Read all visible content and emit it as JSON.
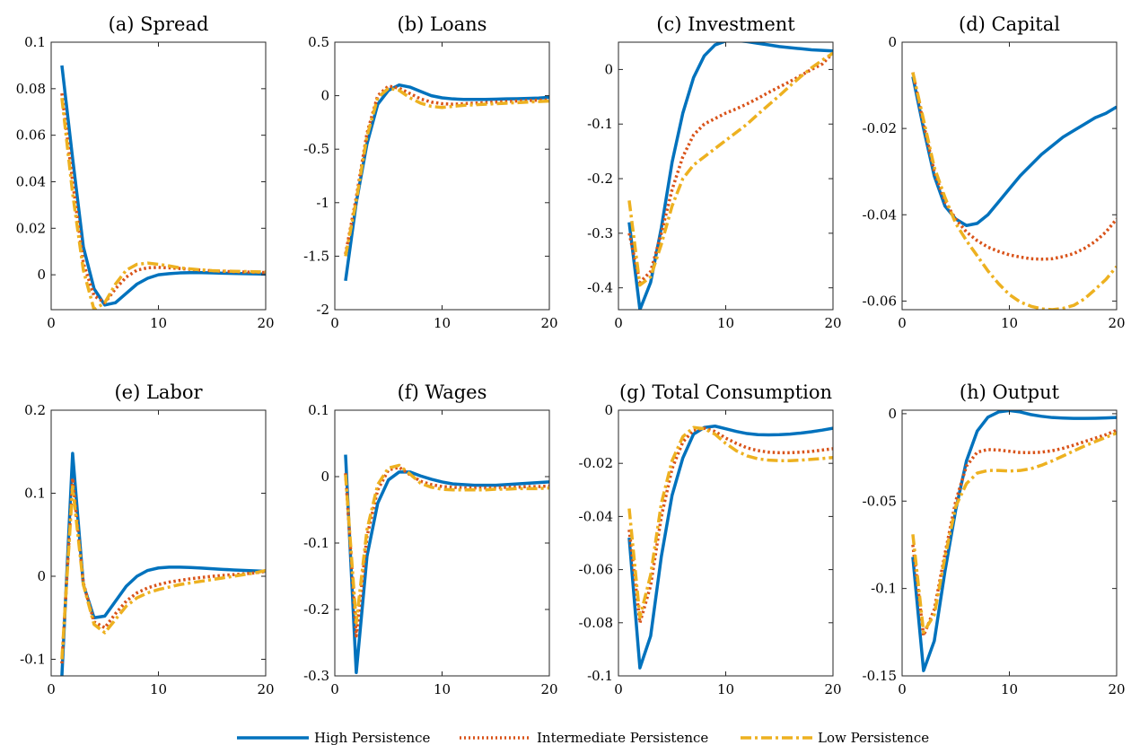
{
  "chart_data": {
    "type": "line",
    "legend": {
      "placement": "bottom",
      "entries": [
        "High Persistence",
        "Intermediate Persistence",
        "Low Persistence"
      ]
    },
    "series_styles": [
      {
        "name": "High Persistence",
        "color": "#0072BD",
        "dash": "solid"
      },
      {
        "name": "Intermediate Persistence",
        "color": "#D95319",
        "dash": "dotted"
      },
      {
        "name": "Low Persistence",
        "color": "#EDB120",
        "dash": "dashdot"
      }
    ],
    "x": [
      1,
      2,
      3,
      4,
      5,
      6,
      7,
      8,
      9,
      10,
      11,
      12,
      13,
      14,
      15,
      16,
      17,
      18,
      19,
      20
    ],
    "panels": [
      {
        "title": "(a) Spread",
        "xlim": [
          0,
          20
        ],
        "ylim": [
          -0.015,
          0.1
        ],
        "xticks": [
          0,
          10,
          20
        ],
        "xtick_labels": [
          "0",
          "10",
          "20"
        ],
        "yticks": [
          0,
          0.02,
          0.04,
          0.06,
          0.08,
          0.1
        ],
        "ytick_labels": [
          "0",
          "0.02",
          "0.04",
          "0.06",
          "0.08",
          "0.1"
        ],
        "series": [
          [
            0.09,
            0.05,
            0.012,
            -0.006,
            -0.013,
            -0.012,
            -0.008,
            -0.004,
            -0.0015,
            0,
            0.0005,
            0.0008,
            0.0009,
            0.0009,
            0.0008,
            0.0007,
            0.0006,
            0.0005,
            0.0004,
            0.0003
          ],
          [
            0.078,
            0.04,
            0.005,
            -0.009,
            -0.012,
            -0.006,
            -0.001,
            0.002,
            0.003,
            0.0032,
            0.003,
            0.0027,
            0.0023,
            0.002,
            0.0017,
            0.0015,
            0.0013,
            0.0012,
            0.0011,
            0.001
          ],
          [
            0.076,
            0.035,
            0.002,
            -0.015,
            -0.012,
            -0.004,
            0.002,
            0.0045,
            0.005,
            0.0045,
            0.0038,
            0.003,
            0.0025,
            0.0021,
            0.0018,
            0.0016,
            0.0015,
            0.0014,
            0.0013,
            0.0012
          ]
        ]
      },
      {
        "title": "(b) Loans",
        "xlim": [
          0,
          20
        ],
        "ylim": [
          -2,
          0.5
        ],
        "xticks": [
          0,
          10,
          20
        ],
        "xtick_labels": [
          "0",
          "10",
          "20"
        ],
        "yticks": [
          -2,
          -1.5,
          -1,
          -0.5,
          0,
          0.5
        ],
        "ytick_labels": [
          "-2",
          "-1.5",
          "-1",
          "-0.5",
          "0",
          "0.5"
        ],
        "series": [
          [
            -1.73,
            -1.0,
            -0.45,
            -0.08,
            0.05,
            0.1,
            0.08,
            0.04,
            0.0,
            -0.02,
            -0.03,
            -0.035,
            -0.035,
            -0.035,
            -0.033,
            -0.03,
            -0.028,
            -0.025,
            -0.022,
            -0.015
          ],
          [
            -1.48,
            -0.95,
            -0.35,
            0.0,
            0.09,
            0.07,
            0.02,
            -0.03,
            -0.06,
            -0.075,
            -0.08,
            -0.075,
            -0.07,
            -0.065,
            -0.06,
            -0.055,
            -0.05,
            -0.045,
            -0.042,
            -0.04
          ],
          [
            -1.5,
            -0.98,
            -0.38,
            -0.02,
            0.07,
            0.05,
            -0.02,
            -0.07,
            -0.1,
            -0.11,
            -0.1,
            -0.09,
            -0.085,
            -0.08,
            -0.075,
            -0.07,
            -0.065,
            -0.06,
            -0.055,
            -0.05
          ]
        ]
      },
      {
        "title": "(c) Investment",
        "xlim": [
          0,
          20
        ],
        "ylim": [
          -0.44,
          0.05
        ],
        "xticks": [
          0,
          10,
          20
        ],
        "xtick_labels": [
          "0",
          "10",
          "20"
        ],
        "yticks": [
          -0.4,
          -0.3,
          -0.2,
          -0.1,
          0
        ],
        "ytick_labels": [
          "-0.4",
          "-0.3",
          "-0.2",
          "-0.1",
          "0"
        ],
        "series": [
          [
            -0.28,
            -0.44,
            -0.39,
            -0.29,
            -0.17,
            -0.08,
            -0.015,
            0.025,
            0.045,
            0.052,
            0.053,
            0.051,
            0.048,
            0.045,
            0.042,
            0.04,
            0.038,
            0.036,
            0.035,
            0.034
          ],
          [
            -0.3,
            -0.39,
            -0.37,
            -0.3,
            -0.22,
            -0.16,
            -0.12,
            -0.1,
            -0.09,
            -0.08,
            -0.072,
            -0.063,
            -0.053,
            -0.042,
            -0.032,
            -0.022,
            -0.011,
            0.0,
            0.01,
            0.03
          ],
          [
            -0.24,
            -0.395,
            -0.38,
            -0.32,
            -0.25,
            -0.2,
            -0.175,
            -0.16,
            -0.145,
            -0.13,
            -0.115,
            -0.1,
            -0.082,
            -0.065,
            -0.048,
            -0.03,
            -0.013,
            0.003,
            0.017,
            0.03
          ]
        ]
      },
      {
        "title": "(d) Capital",
        "xlim": [
          0,
          20
        ],
        "ylim": [
          -0.062,
          0
        ],
        "xticks": [
          0,
          10,
          20
        ],
        "xtick_labels": [
          "0",
          "10",
          "20"
        ],
        "yticks": [
          -0.06,
          -0.04,
          -0.02,
          0
        ],
        "ytick_labels": [
          "-0.06",
          "-0.04",
          "-0.02",
          "0"
        ],
        "series": [
          [
            -0.008,
            -0.02,
            -0.031,
            -0.038,
            -0.041,
            -0.0425,
            -0.042,
            -0.04,
            -0.037,
            -0.034,
            -0.031,
            -0.0285,
            -0.026,
            -0.024,
            -0.022,
            -0.0205,
            -0.019,
            -0.0175,
            -0.0165,
            -0.015
          ],
          [
            -0.007,
            -0.019,
            -0.03,
            -0.037,
            -0.041,
            -0.044,
            -0.046,
            -0.0475,
            -0.0485,
            -0.0493,
            -0.0498,
            -0.0502,
            -0.0503,
            -0.0502,
            -0.0497,
            -0.049,
            -0.0478,
            -0.0462,
            -0.044,
            -0.041
          ],
          [
            -0.007,
            -0.018,
            -0.029,
            -0.036,
            -0.042,
            -0.046,
            -0.0495,
            -0.053,
            -0.056,
            -0.0585,
            -0.0602,
            -0.0612,
            -0.0618,
            -0.062,
            -0.0617,
            -0.061,
            -0.0595,
            -0.0573,
            -0.055,
            -0.052
          ]
        ]
      },
      {
        "title": "(e) Labor",
        "xlim": [
          0,
          20
        ],
        "ylim": [
          -0.12,
          0.2
        ],
        "xticks": [
          0,
          10,
          20
        ],
        "xtick_labels": [
          "0",
          "10",
          "20"
        ],
        "yticks": [
          -0.1,
          0,
          0.1,
          0.2
        ],
        "ytick_labels": [
          "-0.1",
          "0",
          "0.1",
          "0.2"
        ],
        "series": [
          [
            -0.12,
            0.148,
            -0.01,
            -0.05,
            -0.048,
            -0.03,
            -0.012,
            0.0,
            0.007,
            0.01,
            0.011,
            0.011,
            0.0105,
            0.0098,
            0.009,
            0.0083,
            0.0076,
            0.007,
            0.0065,
            0.006
          ],
          [
            -0.105,
            0.118,
            -0.008,
            -0.055,
            -0.062,
            -0.045,
            -0.03,
            -0.02,
            -0.014,
            -0.01,
            -0.007,
            -0.005,
            -0.003,
            -0.0015,
            0.0,
            0.001,
            0.002,
            0.003,
            0.004,
            0.006
          ],
          [
            -0.1,
            0.108,
            -0.01,
            -0.058,
            -0.068,
            -0.052,
            -0.036,
            -0.026,
            -0.02,
            -0.016,
            -0.013,
            -0.01,
            -0.008,
            -0.006,
            -0.004,
            -0.002,
            0.0,
            0.002,
            0.004,
            0.007
          ]
        ]
      },
      {
        "title": "(f) Wages",
        "xlim": [
          0,
          20
        ],
        "ylim": [
          -0.3,
          0.1
        ],
        "xticks": [
          0,
          10,
          20
        ],
        "xtick_labels": [
          "0",
          "10",
          "20"
        ],
        "yticks": [
          -0.3,
          -0.2,
          -0.1,
          0,
          0.1
        ],
        "ytick_labels": [
          "-0.3",
          "-0.2",
          "-0.1",
          "0",
          "0.1"
        ],
        "series": [
          [
            0.033,
            -0.295,
            -0.12,
            -0.04,
            -0.005,
            0.007,
            0.007,
            0.001,
            -0.004,
            -0.008,
            -0.011,
            -0.012,
            -0.013,
            -0.013,
            -0.013,
            -0.012,
            -0.011,
            -0.01,
            -0.009,
            -0.008
          ],
          [
            0.005,
            -0.24,
            -0.09,
            -0.02,
            0.01,
            0.014,
            0.003,
            -0.007,
            -0.012,
            -0.015,
            -0.016,
            -0.017,
            -0.017,
            -0.017,
            -0.017,
            -0.016,
            -0.016,
            -0.015,
            -0.015,
            -0.014
          ],
          [
            0.003,
            -0.22,
            -0.08,
            -0.012,
            0.013,
            0.017,
            0.004,
            -0.01,
            -0.016,
            -0.019,
            -0.02,
            -0.02,
            -0.02,
            -0.02,
            -0.019,
            -0.019,
            -0.018,
            -0.018,
            -0.018,
            -0.017
          ]
        ]
      },
      {
        "title": "(g) Total Consumption",
        "xlim": [
          0,
          20
        ],
        "ylim": [
          -0.1,
          0
        ],
        "xticks": [
          0,
          10,
          20
        ],
        "xtick_labels": [
          "0",
          "10",
          "20"
        ],
        "yticks": [
          -0.1,
          -0.08,
          -0.06,
          -0.04,
          -0.02,
          0
        ],
        "ytick_labels": [
          "-0.1",
          "-0.08",
          "-0.06",
          "-0.04",
          "-0.02",
          "0"
        ],
        "series": [
          [
            -0.048,
            -0.097,
            -0.085,
            -0.055,
            -0.032,
            -0.018,
            -0.009,
            -0.0065,
            -0.006,
            -0.007,
            -0.008,
            -0.0088,
            -0.0092,
            -0.0093,
            -0.0092,
            -0.009,
            -0.0086,
            -0.0081,
            -0.0075,
            -0.0068
          ],
          [
            -0.045,
            -0.08,
            -0.066,
            -0.04,
            -0.022,
            -0.012,
            -0.0075,
            -0.0068,
            -0.008,
            -0.0105,
            -0.0125,
            -0.0142,
            -0.0152,
            -0.0158,
            -0.016,
            -0.016,
            -0.0158,
            -0.0155,
            -0.015,
            -0.0145
          ],
          [
            -0.037,
            -0.078,
            -0.062,
            -0.035,
            -0.019,
            -0.01,
            -0.0065,
            -0.007,
            -0.009,
            -0.0125,
            -0.0153,
            -0.0172,
            -0.0183,
            -0.0188,
            -0.019,
            -0.019,
            -0.0188,
            -0.0185,
            -0.0182,
            -0.0178
          ]
        ]
      },
      {
        "title": "(h) Output",
        "xlim": [
          0,
          20
        ],
        "ylim": [
          -0.15,
          0.002
        ],
        "xticks": [
          0,
          10,
          20
        ],
        "xtick_labels": [
          "0",
          "10",
          "20"
        ],
        "yticks": [
          -0.15,
          -0.1,
          -0.05,
          0
        ],
        "ytick_labels": [
          "-0.15",
          "-0.1",
          "-0.05",
          "0"
        ],
        "series": [
          [
            -0.082,
            -0.147,
            -0.13,
            -0.09,
            -0.055,
            -0.027,
            -0.01,
            -0.002,
            0.001,
            0.0018,
            0.001,
            -0.0005,
            -0.0015,
            -0.0022,
            -0.0025,
            -0.0027,
            -0.0027,
            -0.0026,
            -0.0024,
            -0.0022
          ],
          [
            -0.075,
            -0.127,
            -0.112,
            -0.08,
            -0.05,
            -0.03,
            -0.022,
            -0.0205,
            -0.0208,
            -0.0215,
            -0.0222,
            -0.0223,
            -0.022,
            -0.0212,
            -0.0198,
            -0.018,
            -0.016,
            -0.014,
            -0.012,
            -0.0095
          ],
          [
            -0.069,
            -0.125,
            -0.115,
            -0.082,
            -0.053,
            -0.04,
            -0.034,
            -0.0325,
            -0.0325,
            -0.0328,
            -0.0325,
            -0.0315,
            -0.0295,
            -0.027,
            -0.0242,
            -0.0213,
            -0.0185,
            -0.016,
            -0.0135,
            -0.011
          ]
        ]
      }
    ]
  }
}
